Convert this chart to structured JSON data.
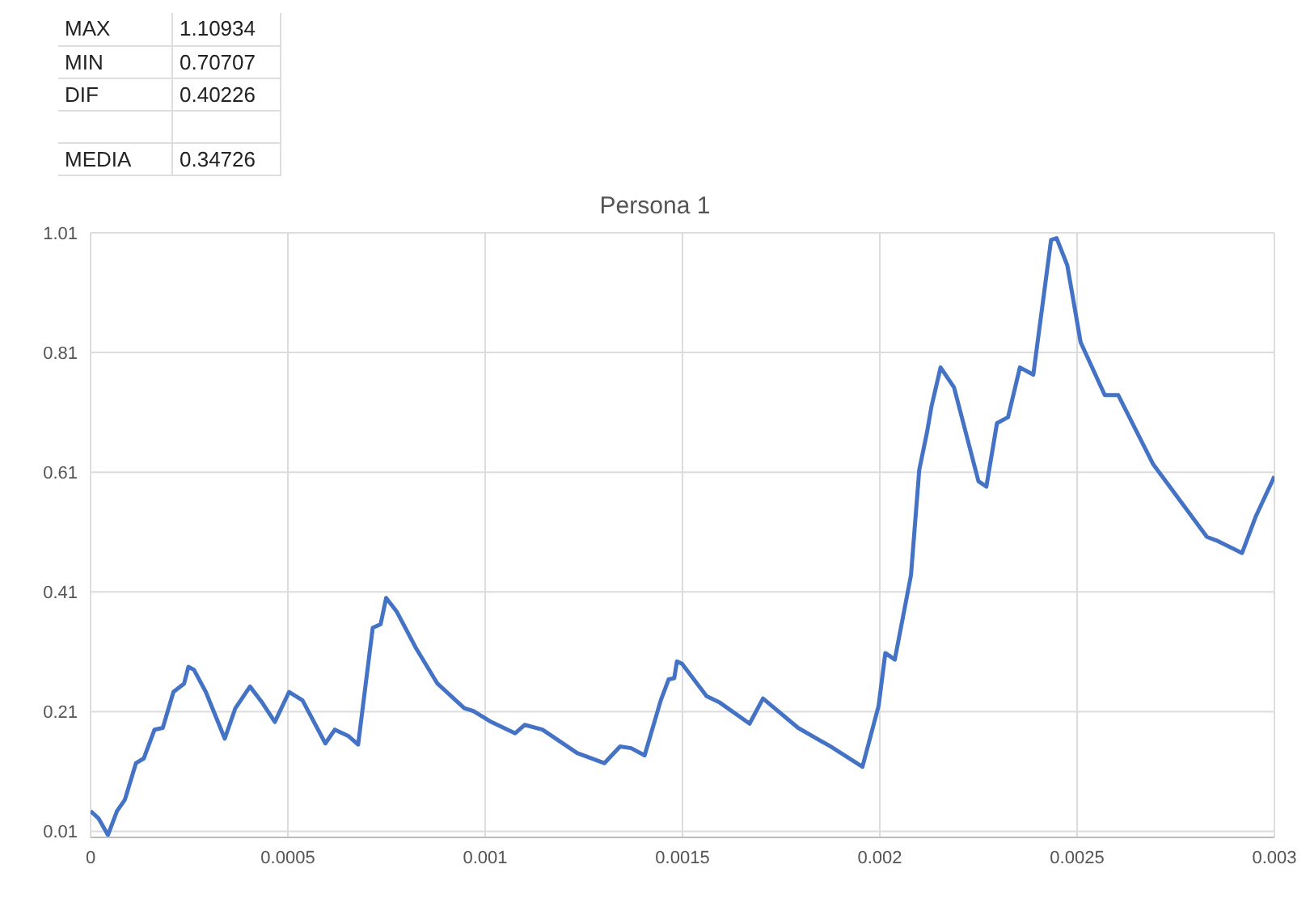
{
  "chart_data": {
    "type": "line",
    "title": "Persona 1",
    "annotations": [
      "MAX",
      "1.10934",
      "MIN",
      "0.70707",
      "DIF",
      "0.40226",
      "MEDIA",
      "0.34726"
    ],
    "xlim": [
      0,
      0.003
    ],
    "xticks": [
      0,
      0.0005,
      0.001,
      0.0015,
      0.002,
      0.0025,
      0.003
    ],
    "ylim": [
      0,
      1.01
    ],
    "yticks": [
      0.01,
      0.21,
      0.41,
      0.61,
      0.81,
      1.01
    ],
    "grid": true,
    "legend": false,
    "marker": "none",
    "line_style": "solid",
    "series": [
      {
        "color": "#4472c4",
        "x": [
          0,
          2e-05,
          4.4e-05,
          6.7e-05,
          8.7e-05,
          0.000115,
          0.000135,
          0.000162,
          0.000183,
          0.00021,
          0.000237,
          0.000248,
          0.000262,
          0.000292,
          0.00034,
          0.000367,
          0.000404,
          0.000435,
          0.000467,
          0.000503,
          0.000537,
          0.000595,
          0.000619,
          0.000654,
          0.000678,
          0.000715,
          0.000735,
          0.000749,
          0.000776,
          0.000824,
          0.000879,
          0.000947,
          0.00097,
          0.001015,
          0.001076,
          0.0011,
          0.001145,
          0.001233,
          0.001302,
          0.001342,
          0.00137,
          0.001404,
          0.001445,
          0.001465,
          0.001479,
          0.001486,
          0.001499,
          0.001561,
          0.001595,
          0.00167,
          0.001704,
          0.001793,
          0.001875,
          0.001956,
          0.001997,
          0.002014,
          0.002038,
          0.002079,
          0.0021,
          0.00212,
          0.002131,
          0.002154,
          0.002188,
          0.00225,
          0.00227,
          0.002297,
          0.002325,
          0.002355,
          0.002389,
          0.002434,
          0.002448,
          0.002475,
          0.002509,
          0.00257,
          0.002604,
          0.002693,
          0.002829,
          0.002857,
          0.002918,
          0.002952,
          0.003
        ],
        "values": [
          0.044,
          0.032,
          0.004,
          0.044,
          0.063,
          0.124,
          0.132,
          0.18,
          0.183,
          0.243,
          0.257,
          0.285,
          0.28,
          0.243,
          0.165,
          0.216,
          0.252,
          0.225,
          0.193,
          0.243,
          0.229,
          0.157,
          0.18,
          0.169,
          0.155,
          0.35,
          0.356,
          0.4,
          0.377,
          0.317,
          0.257,
          0.216,
          0.211,
          0.193,
          0.174,
          0.188,
          0.18,
          0.141,
          0.124,
          0.152,
          0.149,
          0.137,
          0.229,
          0.264,
          0.266,
          0.294,
          0.29,
          0.236,
          0.225,
          0.19,
          0.232,
          0.183,
          0.152,
          0.118,
          0.22,
          0.308,
          0.297,
          0.438,
          0.614,
          0.678,
          0.72,
          0.785,
          0.752,
          0.595,
          0.586,
          0.692,
          0.702,
          0.785,
          0.773,
          0.998,
          1.001,
          0.956,
          0.827,
          0.739,
          0.739,
          0.623,
          0.502,
          0.495,
          0.475,
          0.535,
          0.603
        ]
      }
    ]
  }
}
